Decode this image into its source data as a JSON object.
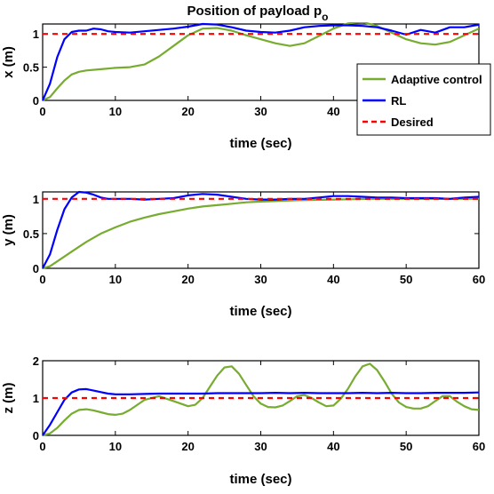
{
  "chart_data": [
    {
      "type": "line",
      "title": "Position of payload p",
      "title_subscript": "o",
      "xlabel": "time (sec)",
      "ylabel": "x (m)",
      "xlim": [
        0,
        60
      ],
      "ylim": [
        0,
        1.15
      ],
      "xticks": [
        "0",
        "10",
        "20",
        "30",
        "40",
        "",
        ""
      ],
      "yticks": [
        {
          "value": 0,
          "label": "0"
        },
        {
          "value": 0.5,
          "label": "0.5"
        },
        {
          "value": 1,
          "label": "1"
        }
      ],
      "series": [
        {
          "name": "Adaptive control",
          "color": "#77ac30",
          "style": "solid",
          "x": [
            0,
            1,
            2,
            3,
            4,
            5,
            6,
            8,
            10,
            12,
            14,
            16,
            18,
            20,
            22,
            24,
            26,
            28,
            30,
            32,
            34,
            36,
            38,
            40,
            42,
            44,
            46,
            48,
            50,
            52,
            54,
            56,
            58,
            60
          ],
          "y": [
            0,
            0.05,
            0.18,
            0.3,
            0.39,
            0.43,
            0.45,
            0.47,
            0.49,
            0.5,
            0.54,
            0.66,
            0.82,
            0.98,
            1.08,
            1.09,
            1.05,
            0.98,
            0.92,
            0.86,
            0.82,
            0.86,
            0.97,
            1.08,
            1.16,
            1.18,
            1.12,
            1.02,
            0.92,
            0.86,
            0.84,
            0.88,
            0.98,
            1.08
          ]
        },
        {
          "name": "RL",
          "color": "#0000ff",
          "style": "solid",
          "x": [
            0,
            1,
            2,
            3,
            4,
            5,
            6,
            7,
            8,
            9,
            10,
            12,
            14,
            16,
            18,
            20,
            22,
            24,
            26,
            28,
            30,
            32,
            34,
            36,
            38,
            40,
            42,
            44,
            46,
            48,
            50,
            52,
            54,
            56,
            58,
            60
          ],
          "y": [
            0,
            0.25,
            0.65,
            0.92,
            1.03,
            1.05,
            1.05,
            1.08,
            1.07,
            1.04,
            1.03,
            1.02,
            1.04,
            1.06,
            1.08,
            1.11,
            1.15,
            1.14,
            1.1,
            1.05,
            1.03,
            1.02,
            1.05,
            1.1,
            1.12,
            1.13,
            1.13,
            1.12,
            1.1,
            1.05,
            0.99,
            1.06,
            1.02,
            1.1,
            1.1,
            1.14
          ]
        },
        {
          "name": "Desired",
          "color": "#ff0000",
          "style": "dashed",
          "x": [
            0,
            60
          ],
          "y": [
            1,
            1
          ]
        }
      ],
      "legend": {
        "position": "right",
        "entries": [
          "Adaptive control",
          "RL",
          "Desired"
        ]
      }
    },
    {
      "type": "line",
      "xlabel": "time (sec)",
      "ylabel": "y (m)",
      "xlim": [
        0,
        60
      ],
      "ylim": [
        0,
        1.1
      ],
      "xticks": [
        "0",
        "10",
        "20",
        "30",
        "40",
        "50",
        "60"
      ],
      "yticks": [
        {
          "value": 0,
          "label": "0"
        },
        {
          "value": 0.5,
          "label": "0.5"
        },
        {
          "value": 1,
          "label": "1"
        }
      ],
      "series": [
        {
          "name": "Adaptive control",
          "color": "#77ac30",
          "style": "solid",
          "x": [
            0,
            1,
            2,
            4,
            6,
            8,
            10,
            12,
            14,
            16,
            18,
            20,
            22,
            24,
            26,
            28,
            30,
            35,
            40,
            45,
            50,
            55,
            60
          ],
          "y": [
            0,
            0.03,
            0.1,
            0.24,
            0.38,
            0.5,
            0.59,
            0.67,
            0.73,
            0.78,
            0.82,
            0.86,
            0.89,
            0.91,
            0.93,
            0.95,
            0.96,
            0.98,
            0.99,
            1.0,
            1.0,
            1.0,
            1.0
          ]
        },
        {
          "name": "RL",
          "color": "#0000ff",
          "style": "solid",
          "x": [
            0,
            1,
            2,
            3,
            4,
            5,
            6,
            7,
            8,
            9,
            10,
            12,
            14,
            16,
            18,
            20,
            22,
            24,
            26,
            28,
            30,
            32,
            34,
            36,
            38,
            40,
            42,
            44,
            46,
            48,
            50,
            52,
            54,
            56,
            58,
            60
          ],
          "y": [
            0,
            0.2,
            0.55,
            0.85,
            1.02,
            1.1,
            1.09,
            1.06,
            1.02,
            1.0,
            1.0,
            1.0,
            0.99,
            1.0,
            1.01,
            1.05,
            1.07,
            1.06,
            1.03,
            1.0,
            0.99,
            0.99,
            1.0,
            1.0,
            1.02,
            1.04,
            1.04,
            1.03,
            1.02,
            1.02,
            1.01,
            1.01,
            1.01,
            1.0,
            1.02,
            1.03
          ]
        },
        {
          "name": "Desired",
          "color": "#ff0000",
          "style": "dashed",
          "x": [
            0,
            60
          ],
          "y": [
            1,
            1
          ]
        }
      ]
    },
    {
      "type": "line",
      "xlabel": "time (sec)",
      "ylabel": "z (m)",
      "xlim": [
        0,
        60
      ],
      "ylim": [
        0,
        2
      ],
      "xticks": [
        "0",
        "10",
        "20",
        "30",
        "40",
        "50",
        "60"
      ],
      "yticks": [
        {
          "value": 0,
          "label": "0"
        },
        {
          "value": 1,
          "label": "1"
        },
        {
          "value": 2,
          "label": "2"
        }
      ],
      "series": [
        {
          "name": "Adaptive control",
          "color": "#77ac30",
          "style": "solid",
          "x": [
            0,
            1,
            2,
            3,
            4,
            5,
            6,
            7,
            8,
            9,
            10,
            11,
            12,
            14,
            16,
            18,
            20,
            21,
            22,
            23,
            24,
            25,
            26,
            27,
            28,
            29,
            30,
            31,
            32,
            33,
            34,
            35,
            36,
            37,
            38,
            39,
            40,
            41,
            42,
            43,
            44,
            45,
            46,
            47,
            48,
            49,
            50,
            51,
            52,
            53,
            54,
            55,
            56,
            57,
            58,
            59,
            60
          ],
          "y": [
            0,
            0.05,
            0.2,
            0.4,
            0.58,
            0.68,
            0.7,
            0.67,
            0.62,
            0.57,
            0.55,
            0.58,
            0.68,
            0.95,
            1.05,
            0.92,
            0.78,
            0.82,
            1.0,
            1.3,
            1.6,
            1.82,
            1.85,
            1.65,
            1.35,
            1.05,
            0.85,
            0.76,
            0.75,
            0.8,
            0.92,
            1.05,
            1.08,
            1.0,
            0.88,
            0.78,
            0.8,
            0.98,
            1.25,
            1.58,
            1.85,
            1.92,
            1.75,
            1.45,
            1.12,
            0.88,
            0.76,
            0.72,
            0.72,
            0.78,
            0.92,
            1.05,
            1.05,
            0.9,
            0.78,
            0.7,
            0.68
          ]
        },
        {
          "name": "RL",
          "color": "#0000ff",
          "style": "solid",
          "x": [
            0,
            1,
            2,
            3,
            4,
            5,
            6,
            7,
            8,
            9,
            10,
            12,
            14,
            16,
            18,
            20,
            22,
            24,
            26,
            28,
            30,
            32,
            34,
            36,
            38,
            40,
            42,
            44,
            46,
            48,
            50,
            52,
            54,
            56,
            58,
            60
          ],
          "y": [
            0,
            0.28,
            0.62,
            0.95,
            1.15,
            1.23,
            1.24,
            1.2,
            1.16,
            1.12,
            1.1,
            1.1,
            1.11,
            1.12,
            1.12,
            1.12,
            1.12,
            1.13,
            1.13,
            1.13,
            1.13,
            1.14,
            1.13,
            1.14,
            1.13,
            1.13,
            1.13,
            1.14,
            1.13,
            1.14,
            1.13,
            1.13,
            1.14,
            1.14,
            1.14,
            1.15
          ]
        },
        {
          "name": "Desired",
          "color": "#ff0000",
          "style": "dashed",
          "x": [
            0,
            60
          ],
          "y": [
            1,
            1
          ]
        }
      ]
    }
  ]
}
